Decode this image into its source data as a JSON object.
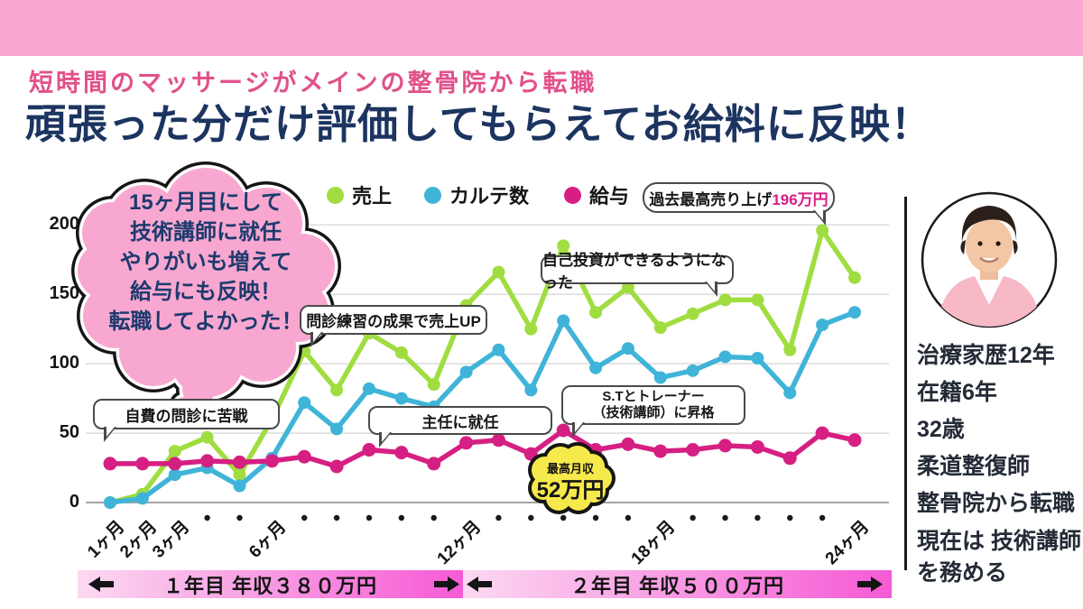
{
  "header": {
    "subtitle": "短時間のマッサージがメインの整骨院から転職",
    "title": "頑張った分だけ評価してもらえてお給料に反映！"
  },
  "legend": [
    {
      "label": "売上",
      "color": "#a0dd40"
    },
    {
      "label": "カルテ数",
      "color": "#3fb4d8"
    },
    {
      "label": "給与",
      "color": "#d61f82"
    }
  ],
  "cloud": {
    "lines": [
      "15ヶ月目にして",
      "技術講師に就任",
      "やりがいも増えて",
      "給与にも反映！",
      "転職してよかった！"
    ]
  },
  "annotations": {
    "self_pay": "自費の問診に苦戦",
    "interview_practice": "問診練習の成果で売上UP",
    "chief": "主任に就任",
    "st_trainer_line1": "S.Tとトレーナー",
    "st_trainer_line2": "（技術講師）に昇格",
    "self_investment": "自己投資ができるようになった",
    "record_sales_prefix": "過去最高売り上げ",
    "record_sales_value": "196万円",
    "max_salary_label": "最高月収",
    "max_salary_value": "52万円"
  },
  "chart_data": {
    "type": "line",
    "x_unit": "month",
    "x": [
      1,
      2,
      3,
      4,
      5,
      6,
      7,
      8,
      9,
      10,
      11,
      12,
      13,
      14,
      15,
      16,
      17,
      18,
      19,
      20,
      21,
      22,
      23,
      24
    ],
    "x_axis_labels": [
      {
        "month": 1,
        "label": "1ヶ月"
      },
      {
        "month": 2,
        "label": "2ヶ月"
      },
      {
        "month": 3,
        "label": "3ヶ月"
      },
      {
        "month": 6,
        "label": "6ヶ月"
      },
      {
        "month": 12,
        "label": "12ヶ月"
      },
      {
        "month": 18,
        "label": "18ヶ月"
      },
      {
        "month": 24,
        "label": "24ヶ月"
      }
    ],
    "y_ticks": [
      0,
      50,
      100,
      150,
      200
    ],
    "ylim": [
      0,
      210
    ],
    "grid": true,
    "legend_position": "top",
    "series": [
      {
        "name": "売上",
        "color": "#a0dd40",
        "values": [
          0,
          6,
          37,
          47,
          20,
          60,
          109,
          81,
          122,
          108,
          85,
          142,
          166,
          125,
          185,
          137,
          155,
          126,
          136,
          146,
          146,
          110,
          196,
          162
        ]
      },
      {
        "name": "カルテ数",
        "color": "#3fb4d8",
        "values": [
          0,
          3,
          20,
          25,
          12,
          32,
          72,
          53,
          82,
          75,
          69,
          94,
          110,
          81,
          131,
          97,
          111,
          90,
          95,
          105,
          104,
          79,
          128,
          137
        ]
      },
      {
        "name": "給与",
        "color": "#d61f82",
        "values": [
          28,
          28,
          28,
          30,
          29,
          30,
          33,
          26,
          38,
          36,
          28,
          43,
          45,
          35,
          52,
          38,
          42,
          37,
          38,
          41,
          40,
          32,
          50,
          45
        ]
      }
    ],
    "annotations_data": [
      {
        "text": "過去最高売り上げ196万円",
        "points_to": {
          "series": "売上",
          "month": 23,
          "value": 196
        }
      },
      {
        "text": "最高月収52万円",
        "points_to": {
          "series": "給与",
          "month": 15,
          "value": 52
        }
      }
    ]
  },
  "footer": {
    "year1": "１年目 年収３８０万円",
    "year2": "２年目 年収５００万円"
  },
  "profile": {
    "lines": [
      "治療家歴12年",
      "在籍6年",
      "32歳",
      "柔道整復師",
      "整骨院から転職",
      "現在は 技術講師",
      "を務める"
    ]
  },
  "colors": {
    "banner_pink": "#f9a6d1",
    "subtitle_pink": "#e1518a",
    "title_navy": "#1c3460",
    "cloud_pink": "#f8a8d0",
    "cloud_text_navy": "#1d3a6e",
    "green": "#a0dd40",
    "blue": "#3fb4d8",
    "magenta": "#d61f82",
    "yellow_badge": "#f6e94b",
    "footer_gradient_light": "#fcd9f1",
    "footer_gradient_vivid": "#f55ad5"
  }
}
